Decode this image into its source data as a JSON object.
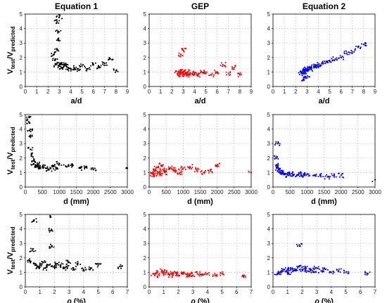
{
  "figure": {
    "ylabel_main": "V",
    "ylabel_sub1": "test",
    "ylabel_sep": "/V",
    "ylabel_sub2": "predicted"
  },
  "chart_data": [
    {
      "type": "scatter",
      "title": "Equation 1",
      "xlabel": "a/d",
      "ylabel": "Vtest/Vpredicted",
      "xlim": [
        0,
        9
      ],
      "ylim": [
        0,
        5
      ],
      "xticks": [
        0,
        1,
        2,
        3,
        4,
        5,
        6,
        7,
        8,
        9
      ],
      "yticks": [
        0,
        1,
        2,
        3,
        4,
        5
      ],
      "grid": true,
      "color": "#000000",
      "series": [
        {
          "x": [
            2.5,
            2.6,
            2.7,
            2.8,
            2.9,
            3.0,
            3.1,
            3.2,
            3.4,
            3.6,
            3.8,
            4.0,
            4.3,
            4.6,
            5.0,
            5.5,
            6.0,
            6.5,
            7.0,
            7.5,
            8.0,
            2.8,
            2.9,
            3.0
          ],
          "y": [
            2.2,
            1.8,
            1.5,
            2.5,
            3.8,
            1.4,
            1.6,
            1.3,
            1.5,
            1.4,
            1.3,
            1.2,
            1.3,
            1.2,
            1.4,
            1.2,
            1.5,
            1.3,
            1.6,
            1.9,
            1.1,
            4.5,
            3.2,
            4.8
          ]
        }
      ]
    },
    {
      "type": "scatter",
      "title": "GEP",
      "xlabel": "a/d",
      "ylabel": "",
      "xlim": [
        0,
        9
      ],
      "ylim": [
        0,
        5
      ],
      "xticks": [
        0,
        1,
        2,
        3,
        4,
        5,
        6,
        7,
        8,
        9
      ],
      "yticks": [
        0,
        1,
        2,
        3,
        4,
        5
      ],
      "grid": true,
      "color": "#ff0000",
      "series": [
        {
          "x": [
            2.5,
            2.6,
            2.7,
            2.8,
            2.9,
            3.0,
            3.1,
            3.2,
            3.4,
            3.6,
            3.8,
            4.0,
            4.3,
            4.6,
            5.0,
            5.5,
            6.0,
            6.5,
            7.0,
            7.5,
            8.0,
            3.0,
            2.8
          ],
          "y": [
            0.9,
            1.0,
            0.8,
            1.1,
            0.9,
            1.0,
            0.8,
            0.9,
            1.0,
            0.8,
            0.9,
            0.9,
            0.8,
            1.0,
            0.9,
            0.8,
            1.0,
            1.5,
            0.9,
            1.3,
            0.8,
            2.5,
            2.2
          ]
        }
      ]
    },
    {
      "type": "scatter",
      "title": "Equation 2",
      "xlabel": "a/d",
      "ylabel": "",
      "xlim": [
        0,
        9
      ],
      "ylim": [
        0,
        5
      ],
      "xticks": [
        0,
        1,
        2,
        3,
        4,
        5,
        6,
        7,
        8,
        9
      ],
      "yticks": [
        0,
        1,
        2,
        3,
        4,
        5
      ],
      "grid": true,
      "color": "#0000ff",
      "series": [
        {
          "x": [
            2.5,
            2.6,
            2.7,
            2.8,
            2.9,
            3.0,
            3.1,
            3.2,
            3.4,
            3.6,
            3.8,
            4.0,
            4.3,
            4.6,
            5.0,
            5.5,
            6.0,
            6.5,
            7.0,
            7.5,
            8.0,
            2.7,
            3.0
          ],
          "y": [
            0.9,
            1.0,
            1.1,
            1.0,
            1.2,
            1.1,
            1.2,
            1.3,
            1.2,
            1.4,
            1.4,
            1.5,
            1.6,
            1.6,
            1.8,
            1.9,
            2.0,
            2.3,
            2.4,
            2.7,
            2.9,
            0.5,
            0.6
          ]
        }
      ]
    },
    {
      "type": "scatter",
      "title": "",
      "xlabel": "d (mm)",
      "ylabel": "Vtest/Vpredicted",
      "xlim": [
        0,
        3000
      ],
      "ylim": [
        0,
        5
      ],
      "xticks": [
        0,
        500,
        1000,
        1500,
        2000,
        2500,
        3000
      ],
      "yticks": [
        0,
        1,
        2,
        3,
        4,
        5
      ],
      "grid": true,
      "color": "#000000",
      "series": [
        {
          "x": [
            100,
            120,
            150,
            180,
            200,
            250,
            300,
            350,
            400,
            450,
            500,
            600,
            700,
            800,
            900,
            1000,
            1200,
            1400,
            1600,
            1800,
            2000,
            3000,
            110,
            130
          ],
          "y": [
            4.5,
            3.5,
            2.6,
            2.2,
            1.8,
            1.6,
            1.5,
            1.4,
            1.6,
            1.3,
            1.4,
            1.3,
            1.2,
            1.4,
            1.3,
            1.6,
            1.4,
            1.5,
            1.3,
            1.4,
            1.2,
            1.3,
            4.8,
            3.9
          ]
        }
      ]
    },
    {
      "type": "scatter",
      "title": "",
      "xlabel": "d (mm)",
      "ylabel": "",
      "xlim": [
        0,
        3000
      ],
      "ylim": [
        0,
        5
      ],
      "xticks": [
        0,
        500,
        1000,
        1500,
        2000,
        2500,
        3000
      ],
      "yticks": [
        0,
        1,
        2,
        3,
        4,
        5
      ],
      "grid": true,
      "color": "#ff0000",
      "series": [
        {
          "x": [
            100,
            120,
            150,
            180,
            200,
            250,
            300,
            350,
            400,
            450,
            500,
            600,
            700,
            800,
            900,
            1000,
            1200,
            1400,
            1600,
            1800,
            2000,
            3000
          ],
          "y": [
            0.9,
            1.0,
            0.8,
            1.1,
            1.3,
            1.0,
            0.9,
            1.5,
            1.2,
            1.0,
            1.1,
            1.3,
            1.2,
            1.1,
            1.0,
            1.3,
            1.4,
            1.2,
            1.0,
            1.1,
            1.5,
            1.0
          ]
        }
      ]
    },
    {
      "type": "scatter",
      "title": "",
      "xlabel": "d (mm)",
      "ylabel": "",
      "xlim": [
        0,
        3000
      ],
      "ylim": [
        0,
        5
      ],
      "xticks": [
        0,
        500,
        1000,
        1500,
        2000,
        2500,
        3000
      ],
      "yticks": [
        0,
        1,
        2,
        3,
        4,
        5
      ],
      "grid": true,
      "color": "#0000ff",
      "series": [
        {
          "x": [
            100,
            120,
            150,
            180,
            200,
            250,
            300,
            350,
            400,
            450,
            500,
            600,
            700,
            800,
            900,
            1000,
            1200,
            1400,
            1600,
            1800,
            2000,
            3000,
            140
          ],
          "y": [
            2.0,
            1.5,
            1.3,
            1.2,
            1.1,
            1.0,
            1.0,
            0.9,
            0.9,
            0.8,
            0.9,
            0.8,
            0.8,
            0.9,
            0.8,
            0.9,
            0.8,
            0.8,
            0.7,
            0.8,
            0.8,
            0.5,
            3.0
          ]
        }
      ]
    },
    {
      "type": "scatter",
      "title": "",
      "xlabel": "ρ (%)",
      "ylabel": "Vtest/Vpredicted",
      "xlim": [
        0,
        7
      ],
      "ylim": [
        0,
        5
      ],
      "xticks": [
        0,
        1,
        2,
        3,
        4,
        5,
        6,
        7
      ],
      "yticks": [
        0,
        1,
        2,
        3,
        4,
        5
      ],
      "grid": true,
      "color": "#000000",
      "series": [
        {
          "x": [
            0.3,
            0.5,
            0.7,
            0.9,
            1.0,
            1.2,
            1.4,
            1.6,
            1.8,
            2.0,
            2.2,
            2.4,
            2.6,
            2.8,
            3.0,
            3.3,
            3.6,
            4.0,
            4.5,
            5.0,
            6.5,
            0.6,
            1.7,
            1.8
          ],
          "y": [
            1.8,
            2.5,
            1.6,
            1.4,
            1.5,
            1.7,
            1.3,
            1.5,
            2.8,
            1.4,
            1.6,
            1.5,
            1.3,
            1.4,
            1.7,
            1.3,
            1.6,
            1.2,
            1.3,
            1.5,
            1.4,
            4.6,
            4.9,
            3.9
          ]
        }
      ]
    },
    {
      "type": "scatter",
      "title": "",
      "xlabel": "ρ (%)",
      "ylabel": "",
      "xlim": [
        0,
        7
      ],
      "ylim": [
        0,
        5
      ],
      "xticks": [
        0,
        1,
        2,
        3,
        4,
        5,
        6,
        7
      ],
      "yticks": [
        0,
        1,
        2,
        3,
        4,
        5
      ],
      "grid": true,
      "color": "#ff0000",
      "series": [
        {
          "x": [
            0.3,
            0.5,
            0.7,
            0.9,
            1.0,
            1.2,
            1.4,
            1.6,
            1.8,
            2.0,
            2.2,
            2.4,
            2.6,
            2.8,
            3.0,
            3.3,
            3.6,
            4.0,
            4.5,
            5.0,
            6.5
          ],
          "y": [
            0.9,
            1.0,
            0.8,
            1.1,
            0.9,
            1.0,
            0.8,
            0.9,
            1.0,
            0.8,
            0.9,
            1.0,
            0.8,
            0.9,
            0.8,
            0.9,
            0.8,
            0.9,
            0.8,
            0.9,
            0.8
          ]
        }
      ]
    },
    {
      "type": "scatter",
      "title": "",
      "xlabel": "ρ (%)",
      "ylabel": "",
      "xlim": [
        0,
        7
      ],
      "ylim": [
        0,
        5
      ],
      "xticks": [
        0,
        1,
        2,
        3,
        4,
        5,
        6,
        7
      ],
      "yticks": [
        0,
        1,
        2,
        3,
        4,
        5
      ],
      "grid": true,
      "color": "#0000ff",
      "series": [
        {
          "x": [
            0.3,
            0.5,
            0.7,
            0.9,
            1.0,
            1.2,
            1.4,
            1.6,
            1.8,
            2.0,
            2.2,
            2.4,
            2.6,
            2.8,
            3.0,
            3.3,
            3.6,
            4.0,
            4.5,
            5.0,
            6.5,
            1.8
          ],
          "y": [
            0.9,
            1.0,
            1.2,
            1.1,
            1.0,
            1.3,
            1.1,
            1.2,
            1.4,
            1.2,
            1.3,
            1.1,
            1.2,
            1.0,
            1.3,
            1.1,
            1.2,
            1.0,
            1.1,
            1.0,
            0.9,
            2.9
          ]
        }
      ]
    }
  ]
}
